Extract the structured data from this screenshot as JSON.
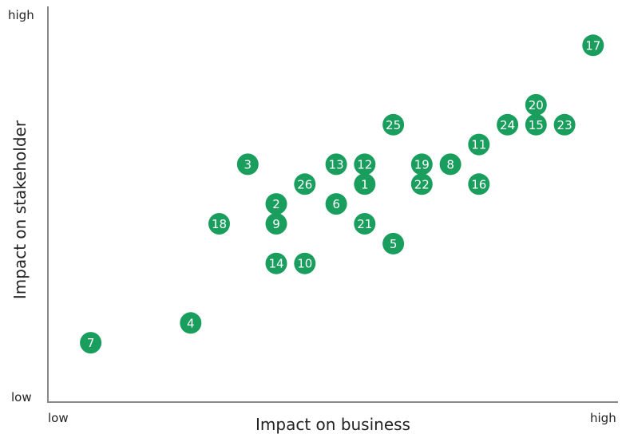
{
  "chart_data": {
    "type": "scatter",
    "title": "",
    "xlabel": "Impact on business",
    "ylabel": "Impact on stakeholder",
    "x_ticks": {
      "low": "low",
      "high": "high"
    },
    "y_ticks": {
      "low": "low",
      "high": "high"
    },
    "xlim": [
      0,
      10
    ],
    "ylim": [
      0,
      10
    ],
    "grid": false,
    "legend": "none",
    "marker_color": "#1a9e5e",
    "points": [
      {
        "label": "1",
        "x": 5.55,
        "y": 6.0
      },
      {
        "label": "2",
        "x": 4.0,
        "y": 5.5
      },
      {
        "label": "3",
        "x": 3.5,
        "y": 6.5
      },
      {
        "label": "4",
        "x": 2.5,
        "y": 2.5
      },
      {
        "label": "5",
        "x": 6.05,
        "y": 4.5
      },
      {
        "label": "6",
        "x": 5.05,
        "y": 5.5
      },
      {
        "label": "7",
        "x": 0.75,
        "y": 2.0
      },
      {
        "label": "8",
        "x": 7.05,
        "y": 6.5
      },
      {
        "label": "9",
        "x": 4.0,
        "y": 5.0
      },
      {
        "label": "10",
        "x": 4.5,
        "y": 4.0
      },
      {
        "label": "11",
        "x": 7.55,
        "y": 7.0
      },
      {
        "label": "12",
        "x": 5.55,
        "y": 6.5
      },
      {
        "label": "13",
        "x": 5.05,
        "y": 6.5
      },
      {
        "label": "14",
        "x": 4.0,
        "y": 4.0
      },
      {
        "label": "15",
        "x": 8.55,
        "y": 7.5
      },
      {
        "label": "16",
        "x": 7.55,
        "y": 6.0
      },
      {
        "label": "17",
        "x": 9.55,
        "y": 9.5
      },
      {
        "label": "18",
        "x": 3.0,
        "y": 5.0
      },
      {
        "label": "19",
        "x": 6.55,
        "y": 6.5
      },
      {
        "label": "20",
        "x": 8.55,
        "y": 8.0
      },
      {
        "label": "21",
        "x": 5.55,
        "y": 5.0
      },
      {
        "label": "22",
        "x": 6.55,
        "y": 6.0
      },
      {
        "label": "23",
        "x": 9.05,
        "y": 7.5
      },
      {
        "label": "24",
        "x": 8.05,
        "y": 7.5
      },
      {
        "label": "25",
        "x": 6.05,
        "y": 7.5
      },
      {
        "label": "26",
        "x": 4.5,
        "y": 6.0
      }
    ]
  }
}
